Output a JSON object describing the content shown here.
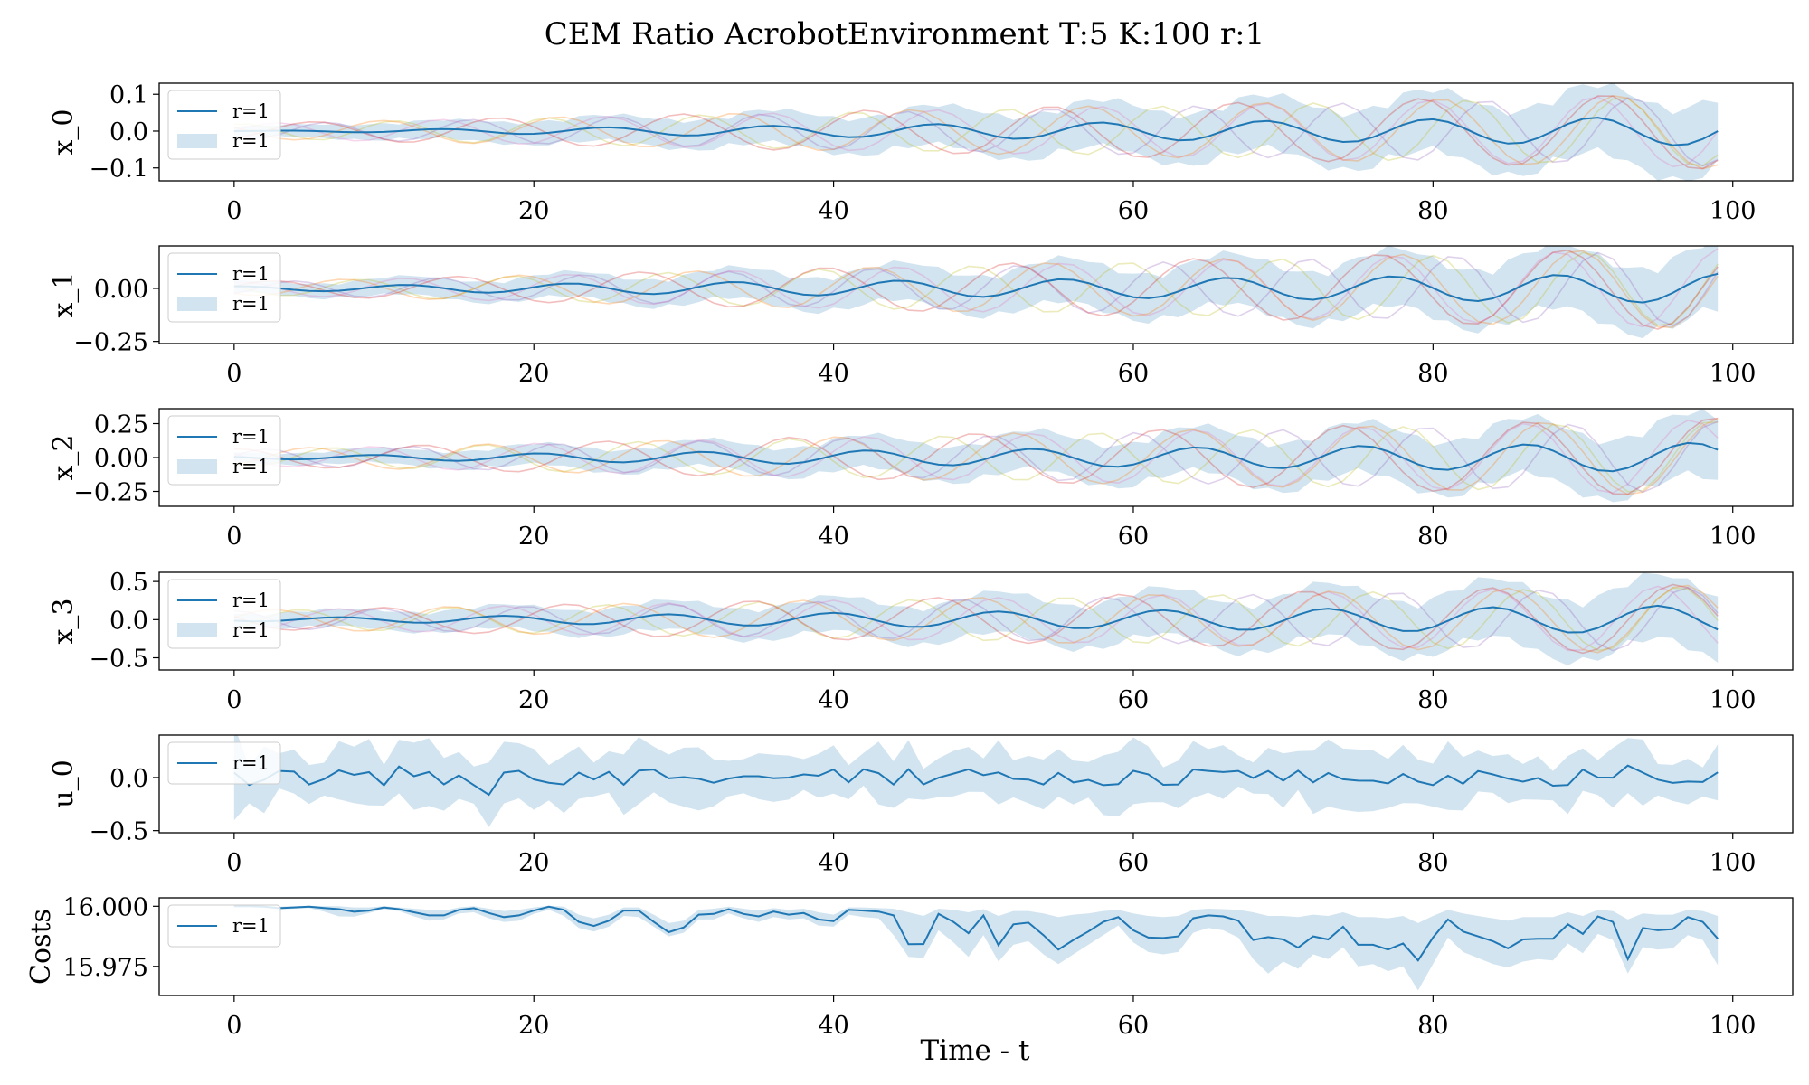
{
  "figure": {
    "title": "CEM Ratio AcrobotEnvironment T:5 K:100 r:1",
    "xlabel": "Time - t"
  },
  "colors": {
    "mean_line": "#1f77b4",
    "band_fill": "#1f77b4",
    "sample_lines": [
      "#e377c2",
      "#bcbd22",
      "#ff7f0e",
      "#9467bd",
      "#d62728"
    ]
  },
  "chart_data": [
    {
      "type": "line",
      "ylabel": "x_0",
      "xlim": [
        -5,
        104
      ],
      "ylim": [
        -0.135,
        0.13
      ],
      "xticks": [
        0,
        20,
        40,
        60,
        80,
        100
      ],
      "xtick_labels": [
        "0",
        "20",
        "40",
        "60",
        "80",
        "100"
      ],
      "yticks": [
        -0.1,
        0.0,
        0.1
      ],
      "ytick_labels": [
        "−0.1",
        "0.0",
        "0.1"
      ],
      "legend": {
        "position": "upper-left",
        "entries": [
          {
            "kind": "line",
            "label": "r=1"
          },
          {
            "kind": "band",
            "label": "r=1"
          }
        ]
      },
      "series": [
        {
          "name": "r=1",
          "period": 11,
          "phase": 0.0,
          "mean_start": 0.0,
          "mean_end": 0.04,
          "band_start": 0.015,
          "band_end": 0.11,
          "sample_amp_start": 0.02,
          "sample_amp_end": 0.1,
          "noise": 0.0
        }
      ]
    },
    {
      "type": "line",
      "ylabel": "x_1",
      "xlim": [
        -5,
        104
      ],
      "ylim": [
        -0.26,
        0.2
      ],
      "xticks": [
        0,
        20,
        40,
        60,
        80,
        100
      ],
      "xtick_labels": [
        "0",
        "20",
        "40",
        "60",
        "80",
        "100"
      ],
      "yticks": [
        -0.25,
        0.0
      ],
      "ytick_labels": [
        "−0.25",
        "0.00"
      ],
      "legend": {
        "position": "upper-left",
        "entries": [
          {
            "kind": "line",
            "label": "r=1"
          },
          {
            "kind": "band",
            "label": "r=1"
          }
        ]
      },
      "series": [
        {
          "name": "r=1",
          "period": 11,
          "phase": 1.4,
          "mean_start": 0.01,
          "mean_end": 0.07,
          "band_start": 0.03,
          "band_end": 0.18,
          "sample_amp_start": 0.03,
          "sample_amp_end": 0.19,
          "noise": 0.0
        }
      ]
    },
    {
      "type": "line",
      "ylabel": "x_2",
      "xlim": [
        -5,
        104
      ],
      "ylim": [
        -0.36,
        0.36
      ],
      "xticks": [
        0,
        20,
        40,
        60,
        80,
        100
      ],
      "xtick_labels": [
        "0",
        "20",
        "40",
        "60",
        "80",
        "100"
      ],
      "yticks": [
        -0.25,
        0.0,
        0.25
      ],
      "ytick_labels": [
        "−0.25",
        "0.00",
        "0.25"
      ],
      "legend": {
        "position": "upper-left",
        "entries": [
          {
            "kind": "line",
            "label": "r=1"
          },
          {
            "kind": "band",
            "label": "r=1"
          }
        ]
      },
      "series": [
        {
          "name": "r=1",
          "period": 11,
          "phase": 2.6,
          "mean_start": 0.01,
          "mean_end": 0.11,
          "band_start": 0.04,
          "band_end": 0.26,
          "sample_amp_start": 0.06,
          "sample_amp_end": 0.28,
          "noise": 0.0
        }
      ]
    },
    {
      "type": "line",
      "ylabel": "x_3",
      "xlim": [
        -5,
        104
      ],
      "ylim": [
        -0.66,
        0.62
      ],
      "xticks": [
        0,
        20,
        40,
        60,
        80,
        100
      ],
      "xtick_labels": [
        "0",
        "20",
        "40",
        "60",
        "80",
        "100"
      ],
      "yticks": [
        -0.5,
        0.0,
        0.5
      ],
      "ytick_labels": [
        "−0.5",
        "0.0",
        "0.5"
      ],
      "legend": {
        "position": "upper-left",
        "entries": [
          {
            "kind": "line",
            "label": "r=1"
          },
          {
            "kind": "band",
            "label": "r=1"
          }
        ]
      },
      "series": [
        {
          "name": "r=1",
          "period": 11,
          "phase": 3.9,
          "mean_start": 0.02,
          "mean_end": 0.19,
          "band_start": 0.1,
          "band_end": 0.48,
          "sample_amp_start": 0.12,
          "sample_amp_end": 0.45,
          "noise": 0.0
        }
      ]
    },
    {
      "type": "line",
      "ylabel": "u_0",
      "xlim": [
        -5,
        104
      ],
      "ylim": [
        -0.52,
        0.4
      ],
      "xticks": [
        0,
        20,
        40,
        60,
        80,
        100
      ],
      "xtick_labels": [
        "0",
        "20",
        "40",
        "60",
        "80",
        "100"
      ],
      "yticks": [
        -0.5,
        0.0
      ],
      "ytick_labels": [
        "−0.5",
        "0.0"
      ],
      "legend": {
        "position": "upper-left",
        "entries": [
          {
            "kind": "line",
            "label": "r=1"
          }
        ]
      },
      "series": [
        {
          "name": "r=1",
          "period": 0,
          "phase": 0.0,
          "mean_start": 0.04,
          "mean_end": 0.07,
          "band_start": 0.25,
          "band_end": 0.25,
          "sample_amp_start": 0.0,
          "sample_amp_end": 0.0,
          "noise": 1.0
        }
      ]
    },
    {
      "type": "line",
      "ylabel": "Costs",
      "xlim": [
        -5,
        104
      ],
      "ylim": [
        15.9629,
        16.0035
      ],
      "xticks": [
        0,
        20,
        40,
        60,
        80,
        100
      ],
      "xtick_labels": [
        "0",
        "20",
        "40",
        "60",
        "80",
        "100"
      ],
      "yticks": [
        15.975,
        16.0
      ],
      "ytick_labels": [
        "15.975",
        "16.000"
      ],
      "legend": {
        "position": "upper-left",
        "entries": [
          {
            "kind": "line",
            "label": "r=1"
          }
        ]
      },
      "series": [
        {
          "name": "r=1",
          "x": [
            0,
            1,
            2,
            3,
            4,
            5,
            6,
            7,
            8,
            9,
            10,
            11,
            12,
            13,
            14,
            15,
            16,
            17,
            18,
            19,
            20,
            21,
            22,
            23,
            24,
            25,
            26,
            27,
            28,
            29,
            30,
            31,
            32,
            33,
            34,
            35,
            36,
            37,
            38,
            39,
            40,
            41,
            42,
            43,
            44,
            45,
            46,
            47,
            48,
            49,
            50,
            51,
            52,
            53,
            54,
            55,
            56,
            57,
            58,
            59,
            60,
            61,
            62,
            63,
            64,
            65,
            66,
            67,
            68,
            69,
            70,
            71,
            72,
            73,
            74,
            75,
            76,
            77,
            78,
            79,
            80,
            81,
            82,
            83,
            84,
            85,
            86,
            87,
            88,
            89,
            90,
            91,
            92,
            93,
            94,
            95,
            96,
            97,
            98,
            99
          ],
          "mean": [
            16.0,
            16.0,
            15.9998,
            15.9992,
            15.9995,
            15.9998,
            15.9993,
            15.9988,
            15.9977,
            15.9982,
            15.9995,
            15.9988,
            15.9975,
            15.9962,
            15.9962,
            15.9985,
            15.9992,
            15.9972,
            15.9955,
            15.9962,
            15.9982,
            15.9998,
            15.9985,
            15.9935,
            15.9918,
            15.994,
            15.9982,
            15.9982,
            15.9935,
            15.9892,
            15.9912,
            15.9965,
            15.9968,
            15.9988,
            15.9968,
            15.9958,
            15.9978,
            15.9965,
            15.9972,
            15.9945,
            15.9938,
            15.9985,
            15.9982,
            15.9978,
            15.9962,
            15.9842,
            15.9843,
            15.9968,
            15.9935,
            15.9888,
            15.9962,
            15.9838,
            15.9925,
            15.9932,
            15.988,
            15.982,
            15.986,
            15.9895,
            15.9935,
            15.9955,
            15.99,
            15.987,
            15.9868,
            15.9875,
            15.995,
            15.9962,
            15.9958,
            15.994,
            15.986,
            15.9872,
            15.9862,
            15.9828,
            15.9875,
            15.9862,
            15.9915,
            15.984,
            15.984,
            15.982,
            15.9845,
            15.9775,
            15.987,
            15.9945,
            15.9895,
            15.9875,
            15.9855,
            15.9825,
            15.9862,
            15.9865,
            15.9865,
            15.9925,
            15.9885,
            15.9958,
            15.9935,
            15.978,
            15.991,
            15.99,
            15.9905,
            15.9955,
            15.9935,
            15.9865
          ],
          "lower": [
            15.9998,
            15.9997,
            15.9993,
            15.9987,
            15.999,
            15.9993,
            15.9978,
            15.9958,
            15.9957,
            15.9972,
            15.9988,
            15.998,
            15.9958,
            15.994,
            15.9945,
            15.997,
            15.9975,
            15.995,
            15.9935,
            15.994,
            15.9968,
            15.9985,
            15.996,
            15.991,
            15.9895,
            15.9915,
            15.996,
            15.9955,
            15.9915,
            15.9875,
            15.989,
            15.9945,
            15.9945,
            15.997,
            15.995,
            15.9935,
            15.9955,
            15.9945,
            15.995,
            15.992,
            15.9915,
            15.9965,
            15.9955,
            15.995,
            15.988,
            15.979,
            15.9785,
            15.99,
            15.985,
            15.979,
            15.988,
            15.977,
            15.984,
            15.9855,
            15.98,
            15.976,
            15.98,
            15.984,
            15.988,
            15.992,
            15.985,
            15.981,
            15.98,
            15.981,
            15.989,
            15.991,
            15.99,
            15.987,
            15.978,
            15.972,
            15.977,
            15.974,
            15.98,
            15.978,
            15.983,
            15.975,
            15.976,
            15.973,
            15.975,
            15.965,
            15.976,
            15.987,
            15.981,
            15.9785,
            15.976,
            15.9745,
            15.977,
            15.978,
            15.9775,
            15.9845,
            15.9805,
            15.9885,
            15.986,
            15.972,
            15.983,
            15.982,
            15.9825,
            15.988,
            15.986,
            15.9755
          ],
          "upper": [
            16.0002,
            16.0003,
            16.0002,
            15.9998,
            16.0,
            16.0002,
            16.0,
            16.0,
            15.9995,
            15.9995,
            16.0,
            15.9995,
            15.999,
            15.9985,
            15.9982,
            15.9995,
            16.0,
            15.999,
            15.998,
            15.9985,
            15.9995,
            16.0002,
            15.9998,
            15.9965,
            15.995,
            15.9965,
            15.9995,
            15.9995,
            15.9965,
            15.993,
            15.994,
            15.9985,
            15.999,
            15.9998,
            15.999,
            15.9982,
            15.9992,
            15.9985,
            15.999,
            15.9975,
            15.9965,
            15.9995,
            15.9995,
            15.9992,
            15.999,
            15.9975,
            15.996,
            15.999,
            15.9985,
            15.9975,
            15.9988,
            15.996,
            15.998,
            15.998,
            15.997,
            15.9955,
            15.9965,
            15.997,
            15.998,
            15.9985,
            15.997,
            15.996,
            15.9955,
            15.996,
            15.9985,
            15.999,
            15.9988,
            15.9985,
            15.9975,
            15.996,
            15.996,
            15.9955,
            15.9965,
            15.996,
            15.9975,
            15.9955,
            15.9955,
            15.995,
            15.996,
            15.993,
            15.996,
            15.9985,
            15.997,
            15.996,
            15.995,
            15.994,
            15.9955,
            15.9955,
            15.9955,
            15.9975,
            15.996,
            15.9985,
            15.998,
            15.9945,
            15.997,
            15.9965,
            15.9965,
            15.9985,
            15.998,
            15.996
          ]
        }
      ]
    }
  ]
}
